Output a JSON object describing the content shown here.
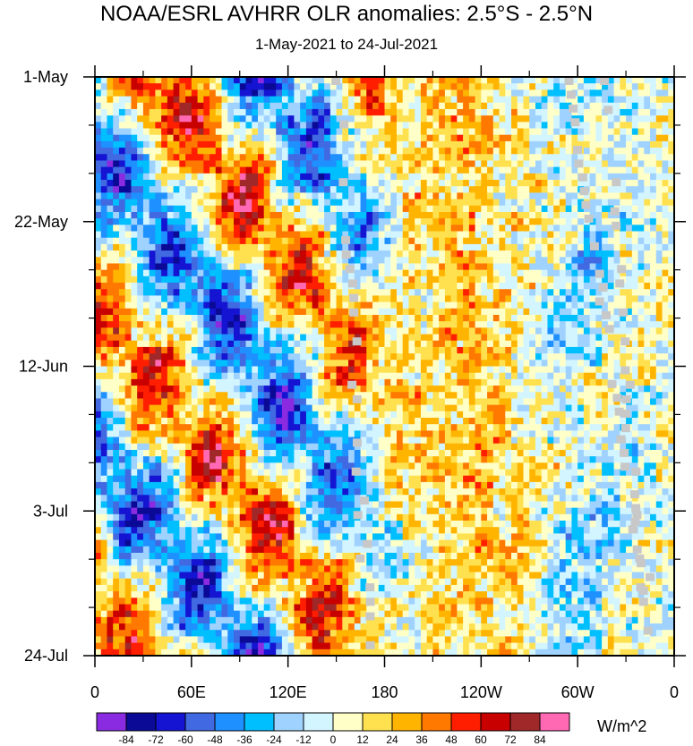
{
  "title": "NOAA/ESRL AVHRR OLR anomalies: 2.5°S - 2.5°N",
  "subtitle": "1-May-2021 to 24-Jul-2021",
  "units": "W/m^2",
  "chart_data": {
    "type": "heatmap",
    "title": "NOAA/ESRL AVHRR OLR anomalies: 2.5°S - 2.5°N",
    "subtitle": "1-May-2021 to 24-Jul-2021",
    "x_tick_labels": [
      "0",
      "60E",
      "120E",
      "180",
      "120W",
      "60W",
      "0"
    ],
    "x_tick_longitudes": [
      0,
      60,
      120,
      180,
      240,
      300,
      360
    ],
    "x_range": [
      0,
      360
    ],
    "y_tick_labels": [
      "1-May",
      "22-May",
      "12-Jun",
      "3-Jul",
      "24-Jul"
    ],
    "y_tick_days": [
      0,
      21,
      42,
      63,
      84
    ],
    "y_range_days": [
      0,
      84
    ],
    "colorbar_labels": [
      "-84",
      "-72",
      "-60",
      "-48",
      "-36",
      "-24",
      "-12",
      "0",
      "12",
      "24",
      "36",
      "48",
      "60",
      "72",
      "84"
    ],
    "colorbar_levels": [
      -84,
      -72,
      -60,
      -48,
      -36,
      -24,
      -12,
      0,
      12,
      24,
      36,
      48,
      60,
      72,
      84
    ],
    "colorbar_colors": [
      "#8a2be2",
      "#0a0a96",
      "#1414d2",
      "#4169e1",
      "#1e90ff",
      "#00bfff",
      "#a0d2ff",
      "#d2f5ff",
      "#ffffc8",
      "#ffe150",
      "#ffb400",
      "#ff7800",
      "#ff1e00",
      "#c80000",
      "#a02828",
      "#ff69b4"
    ],
    "missing_color": "#c8c8c8"
  }
}
